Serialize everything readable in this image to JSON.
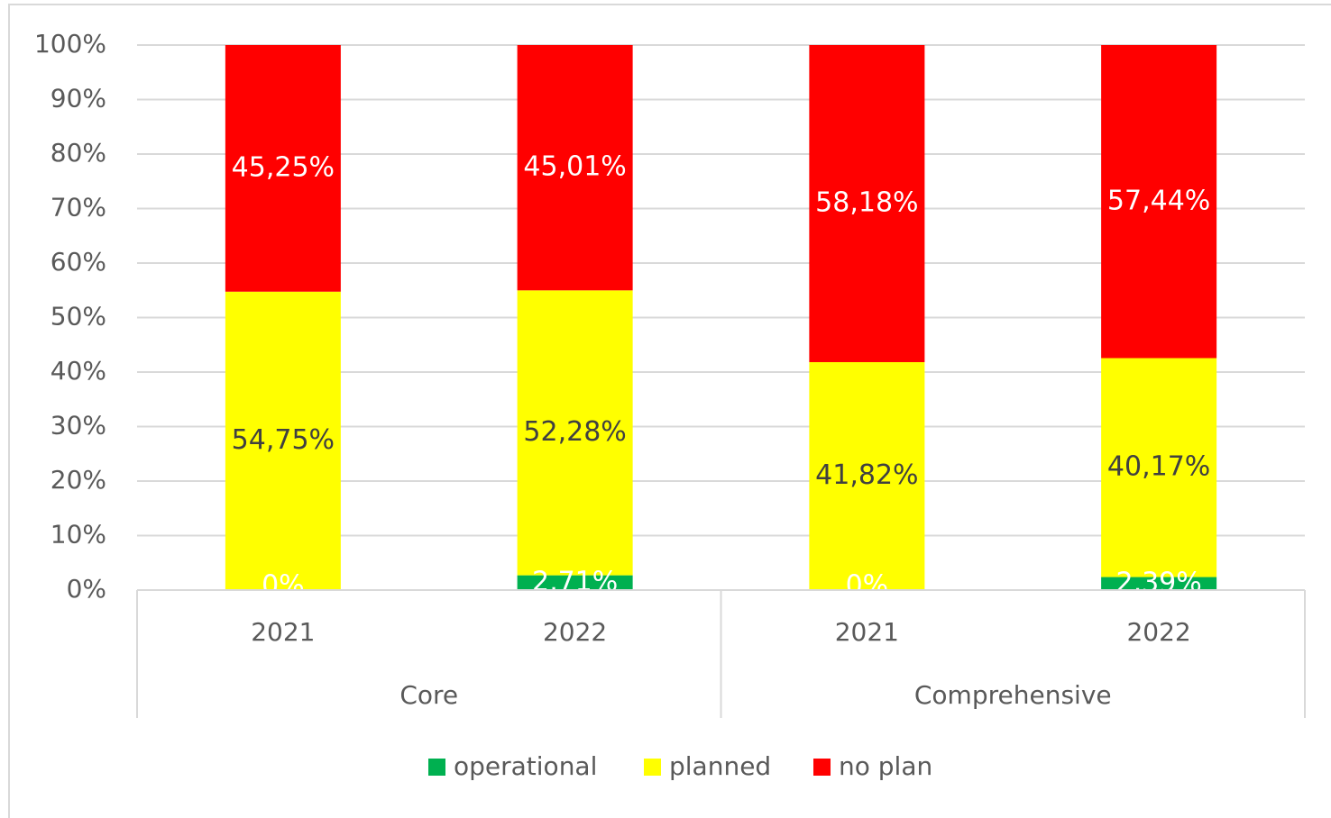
{
  "chart_data": {
    "type": "stacked_bar_100",
    "category_groups": [
      {
        "name": "Core",
        "categories": [
          "2021",
          "2022"
        ]
      },
      {
        "name": "Comprehensive",
        "categories": [
          "2021",
          "2022"
        ]
      }
    ],
    "series": [
      {
        "name": "operational",
        "color": "#00b050",
        "label_color": "#ffffff",
        "values": [
          0,
          2.71,
          0,
          2.39
        ],
        "value_labels": [
          "0%",
          "2,71%",
          "0%",
          "2,39%"
        ]
      },
      {
        "name": "planned",
        "color": "#ffff00",
        "label_color": "#404040",
        "values": [
          54.75,
          52.28,
          41.82,
          40.17
        ],
        "value_labels": [
          "54,75%",
          "52,28%",
          "41,82%",
          "40,17%"
        ]
      },
      {
        "name": "no plan",
        "color": "#ff0000",
        "label_color": "#ffffff",
        "values": [
          45.25,
          45.01,
          58.18,
          57.44
        ],
        "value_labels": [
          "45,25%",
          "45,01%",
          "58,18%",
          "57,44%"
        ]
      }
    ],
    "ylim": [
      0,
      100
    ],
    "yticks": [
      {
        "value": 0,
        "label": "0%"
      },
      {
        "value": 10,
        "label": "10%"
      },
      {
        "value": 20,
        "label": "20%"
      },
      {
        "value": 30,
        "label": "30%"
      },
      {
        "value": 40,
        "label": "40%"
      },
      {
        "value": 50,
        "label": "50%"
      },
      {
        "value": 60,
        "label": "60%"
      },
      {
        "value": 70,
        "label": "70%"
      },
      {
        "value": 80,
        "label": "80%"
      },
      {
        "value": 90,
        "label": "90%"
      },
      {
        "value": 100,
        "label": "100%"
      }
    ],
    "grid": true,
    "legend": "bottom"
  }
}
